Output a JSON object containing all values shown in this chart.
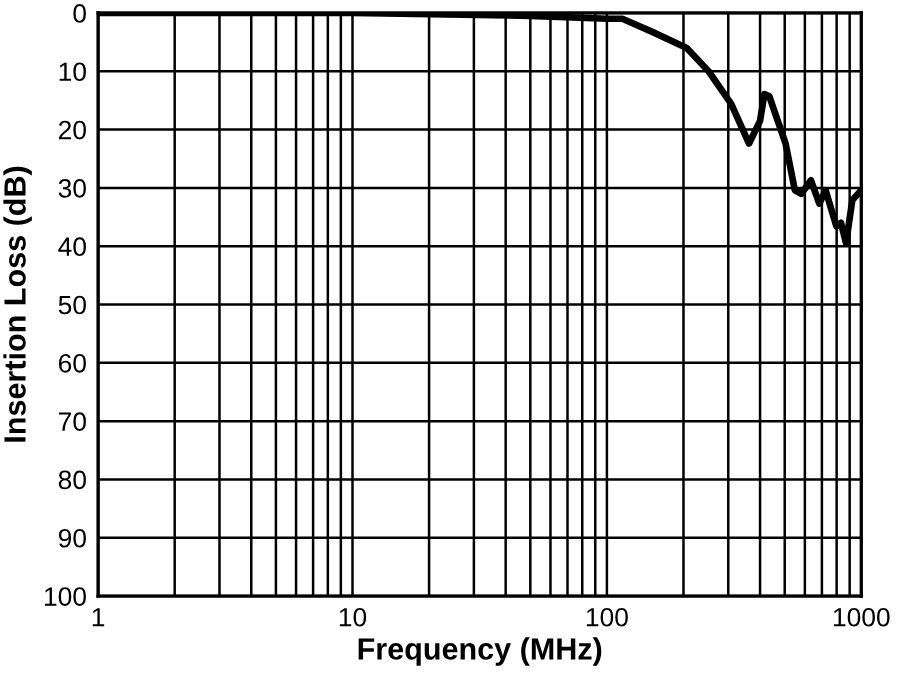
{
  "chart_data": {
    "type": "line",
    "xlabel": "Frequency (MHz)",
    "ylabel": "Insertion Loss (dB)",
    "log": "x",
    "xlim": [
      1,
      1000
    ],
    "ylim": [
      100,
      0
    ],
    "xticks": [
      1,
      {
        "value": 2,
        "label": null
      },
      {
        "value": 3,
        "label": null
      },
      {
        "value": 4,
        "label": null
      },
      {
        "value": 5,
        "label": null
      },
      {
        "value": 6,
        "label": null
      },
      {
        "value": 7,
        "label": null
      },
      {
        "value": 8,
        "label": null
      },
      {
        "value": 9,
        "label": null
      },
      10,
      {
        "value": 20,
        "label": null
      },
      {
        "value": 30,
        "label": null
      },
      {
        "value": 40,
        "label": null
      },
      {
        "value": 50,
        "label": null
      },
      {
        "value": 60,
        "label": null
      },
      {
        "value": 70,
        "label": null
      },
      {
        "value": 80,
        "label": null
      },
      {
        "value": 90,
        "label": null
      },
      100,
      {
        "value": 200,
        "label": null
      },
      {
        "value": 300,
        "label": null
      },
      {
        "value": 400,
        "label": null
      },
      {
        "value": 500,
        "label": null
      },
      {
        "value": 600,
        "label": null
      },
      {
        "value": 700,
        "label": null
      },
      {
        "value": 800,
        "label": null
      },
      {
        "value": 900,
        "label": null
      },
      1000
    ],
    "yticks": [
      0,
      10,
      20,
      30,
      40,
      50,
      60,
      70,
      80,
      90,
      100
    ],
    "grid": true,
    "marker": "none",
    "line_style": "solid",
    "series": [
      {
        "color": "#000000",
        "x": [
          1,
          10,
          50,
          100,
          115,
          150,
          206,
          251,
          308,
          362,
          400,
          416,
          435,
          504,
          548,
          581,
          634,
          684,
          724,
          798,
          832,
          871,
          922,
          1000
        ],
        "values": [
          0,
          0,
          0.5,
          1,
          1,
          3.2,
          6,
          10,
          15.6,
          22.4,
          18.5,
          13.9,
          14.3,
          22.4,
          30.4,
          31,
          28.7,
          32.7,
          30.4,
          36.6,
          36,
          39.5,
          32.1,
          30.4
        ]
      }
    ]
  }
}
